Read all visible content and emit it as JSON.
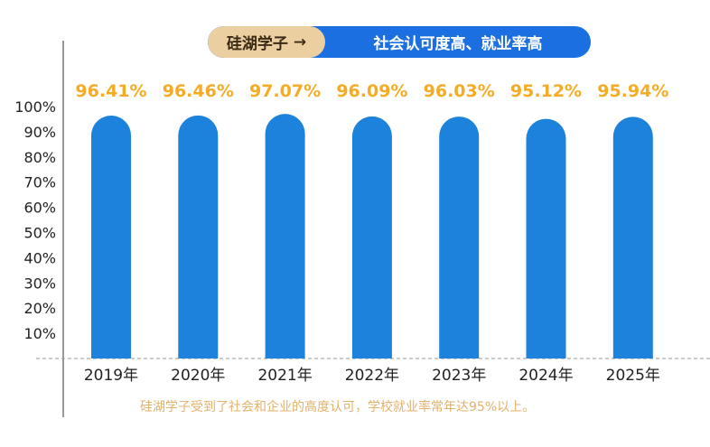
{
  "banner": {
    "left_text": "硅湖学子",
    "arrow": "→",
    "right_text": "社会认可度高、就业率高"
  },
  "footnote": "硅湖学子受到了社会和企业的高度认可，学校就业率常年达95%以上。",
  "colors": {
    "bar": "#1d82dc",
    "value_label": "#f5ac24",
    "banner_blue": "#1c6fe0",
    "banner_tan": "#eccfa1",
    "footnote": "#e2b16d",
    "axis": "#555555"
  },
  "chart_data": {
    "type": "bar",
    "categories": [
      "2019年",
      "2020年",
      "2021年",
      "2022年",
      "2023年",
      "2024年",
      "2025年"
    ],
    "values": [
      96.41,
      96.46,
      97.07,
      96.09,
      96.03,
      95.12,
      95.94
    ],
    "value_labels": [
      "96.41%",
      "96.46%",
      "97.07%",
      "96.09%",
      "96.03%",
      "95.12%",
      "95.94%"
    ],
    "y_ticks": [
      "10%",
      "20%",
      "30%",
      "40%",
      "50%",
      "60%",
      "70%",
      "80%",
      "90%",
      "100%"
    ],
    "ylim": [
      0,
      100
    ],
    "title": "",
    "xlabel": "",
    "ylabel": "",
    "grid": false,
    "legend": "none"
  }
}
